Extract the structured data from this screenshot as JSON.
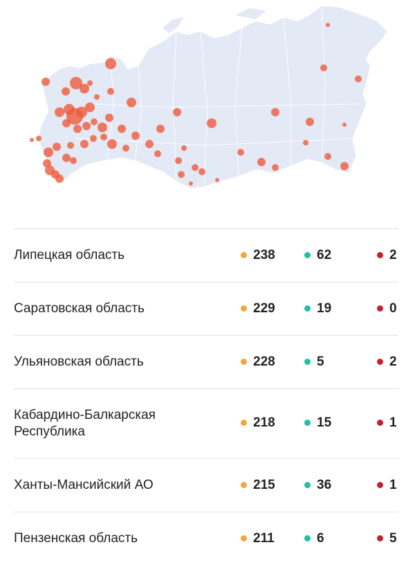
{
  "colors": {
    "map_land": "#e3eaf5",
    "map_border": "#ffffff",
    "bubble": "#ef5b3c",
    "confirmed": "#f4a63a",
    "recovered": "#21bfa3",
    "deaths": "#c8202a",
    "divider": "#e2e2e2"
  },
  "regions": [
    {
      "name": "Липецкая область",
      "confirmed": "238",
      "recovered": "62",
      "deaths": "2"
    },
    {
      "name": "Саратовская область",
      "confirmed": "229",
      "recovered": "19",
      "deaths": "0"
    },
    {
      "name": "Ульяновская область",
      "confirmed": "228",
      "recovered": "5",
      "deaths": "2"
    },
    {
      "name": "Кабардино-Балкарская Республика",
      "confirmed": "218",
      "recovered": "15",
      "deaths": "1"
    },
    {
      "name": "Ханты-Мансийский АО",
      "confirmed": "215",
      "recovered": "36",
      "deaths": "1"
    },
    {
      "name": "Пензенская область",
      "confirmed": "211",
      "recovered": "6",
      "deaths": "5"
    }
  ]
}
